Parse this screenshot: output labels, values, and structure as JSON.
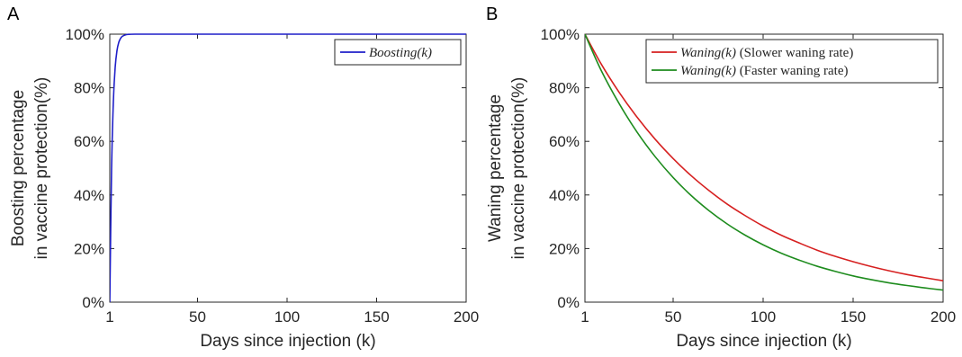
{
  "chart_data": [
    {
      "panel": "A",
      "type": "line",
      "xlabel": "Days since injection (k)",
      "ylabel": [
        "Boosting percentage",
        "in vaccine protection(%)"
      ],
      "xlim": [
        1,
        200
      ],
      "ylim": [
        0,
        100
      ],
      "xticks": [
        1,
        50,
        100,
        150,
        200
      ],
      "yticks": [
        0,
        20,
        40,
        60,
        80,
        100
      ],
      "ytick_format": "percent",
      "grid": false,
      "legend_position": "top-right",
      "series": [
        {
          "name": "Boosting(k)",
          "color": "#1f1fc8",
          "x": [
            1,
            2,
            3,
            4,
            5,
            6,
            7,
            8,
            10,
            12,
            15,
            20,
            30,
            50,
            100,
            150,
            200
          ],
          "y": [
            0,
            50,
            75,
            87.5,
            93.8,
            96.9,
            98.4,
            99.2,
            99.8,
            99.95,
            100,
            100,
            100,
            100,
            100,
            100,
            100
          ]
        }
      ]
    },
    {
      "panel": "B",
      "type": "line",
      "xlabel": "Days since injection (k)",
      "ylabel": [
        "Waning percentage",
        "in vaccine protection(%)"
      ],
      "xlim": [
        1,
        200
      ],
      "ylim": [
        0,
        100
      ],
      "xticks": [
        1,
        50,
        100,
        150,
        200
      ],
      "yticks": [
        0,
        20,
        40,
        60,
        80,
        100
      ],
      "ytick_format": "percent",
      "grid": false,
      "legend_position": "top-right",
      "series": [
        {
          "name": "Waning(k) (Slower waning rate)",
          "color": "#d62020",
          "x": [
            1,
            10,
            20,
            30,
            40,
            50,
            60,
            70,
            80,
            90,
            100,
            110,
            120,
            130,
            140,
            150,
            160,
            170,
            180,
            190,
            200
          ],
          "y": [
            100,
            88.9,
            78.3,
            69.0,
            60.8,
            53.6,
            47.2,
            41.6,
            36.6,
            32.3,
            28.4,
            25.0,
            22.1,
            19.4,
            17.1,
            15.1,
            13.3,
            11.7,
            10.3,
            9.1,
            8.0
          ]
        },
        {
          "name": "Waning(k) (Faster waning rate)",
          "color": "#1e8c1e",
          "x": [
            1,
            10,
            20,
            30,
            40,
            50,
            60,
            70,
            80,
            90,
            100,
            110,
            120,
            130,
            140,
            150,
            160,
            170,
            180,
            190,
            200
          ],
          "y": [
            100,
            86.5,
            74.1,
            63.4,
            54.3,
            46.5,
            39.8,
            34.1,
            29.2,
            25.0,
            21.4,
            18.3,
            15.7,
            13.4,
            11.5,
            9.8,
            8.4,
            7.2,
            6.2,
            5.3,
            4.5
          ]
        }
      ]
    }
  ]
}
